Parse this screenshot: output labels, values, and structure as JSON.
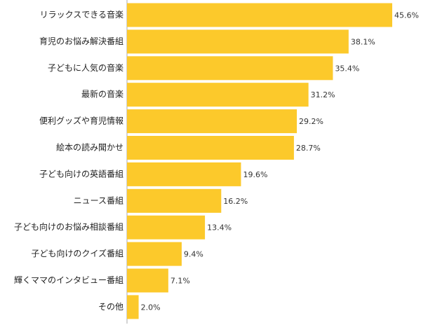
{
  "chart_data": {
    "type": "hbar",
    "categories": [
      "リラックスできる音楽",
      "育児のお悩み解決番組",
      "子どもに人気の音楽",
      "最新の音楽",
      "便利グッズや育児情報",
      "絵本の読み聞かせ",
      "子ども向けの英語番組",
      "ニュース番組",
      "子ども向けのお悩み相談番組",
      "子ども向けのクイズ番組",
      "輝くママのインタビュー番組",
      "その他"
    ],
    "values": [
      45.6,
      38.1,
      35.4,
      31.2,
      29.2,
      28.7,
      19.6,
      16.2,
      13.4,
      9.4,
      7.1,
      2.0
    ],
    "value_labels": [
      "45.6%",
      "38.1%",
      "35.4%",
      "31.2%",
      "29.2%",
      "28.7%",
      "19.6%",
      "16.2%",
      "13.4%",
      "9.4%",
      "7.1%",
      "2.0%"
    ],
    "color": "#fcc92b"
  }
}
